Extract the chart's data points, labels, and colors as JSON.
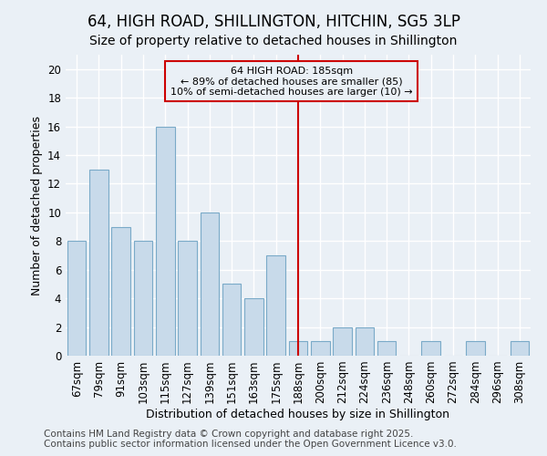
{
  "title": "64, HIGH ROAD, SHILLINGTON, HITCHIN, SG5 3LP",
  "subtitle": "Size of property relative to detached houses in Shillington",
  "xlabel": "Distribution of detached houses by size in Shillington",
  "ylabel": "Number of detached properties",
  "footer_line1": "Contains HM Land Registry data © Crown copyright and database right 2025.",
  "footer_line2": "Contains public sector information licensed under the Open Government Licence v3.0.",
  "categories": [
    "67sqm",
    "79sqm",
    "91sqm",
    "103sqm",
    "115sqm",
    "127sqm",
    "139sqm",
    "151sqm",
    "163sqm",
    "175sqm",
    "188sqm",
    "200sqm",
    "212sqm",
    "224sqm",
    "236sqm",
    "248sqm",
    "260sqm",
    "272sqm",
    "284sqm",
    "296sqm",
    "308sqm"
  ],
  "values": [
    8,
    13,
    9,
    8,
    16,
    8,
    10,
    5,
    4,
    7,
    1,
    1,
    2,
    2,
    1,
    0,
    1,
    0,
    1,
    0,
    1
  ],
  "bar_color": "#c8daea",
  "bar_edge_color": "#7aaac8",
  "background_color": "#eaf0f6",
  "marker_bin_index": 10,
  "marker_color": "#cc0000",
  "annotation_text": "64 HIGH ROAD: 185sqm\n← 89% of detached houses are smaller (85)\n10% of semi-detached houses are larger (10) →",
  "ylim": [
    0,
    21
  ],
  "yticks": [
    0,
    2,
    4,
    6,
    8,
    10,
    12,
    14,
    16,
    18,
    20
  ],
  "title_fontsize": 12,
  "subtitle_fontsize": 10,
  "xlabel_fontsize": 9,
  "ylabel_fontsize": 9,
  "tick_fontsize": 8.5,
  "annotation_fontsize": 8,
  "footer_fontsize": 7.5
}
